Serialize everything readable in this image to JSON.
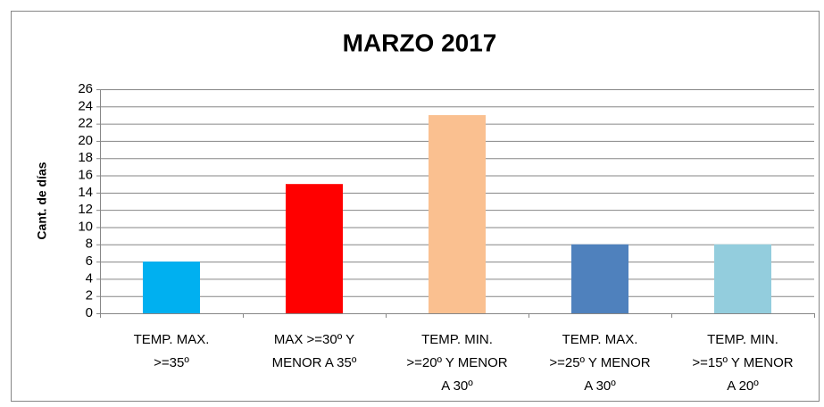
{
  "chart_data": {
    "type": "bar",
    "title": "MARZO 2017",
    "y_label": "Cant. de días",
    "categories": [
      [
        "TEMP. MAX.",
        ">=35º"
      ],
      [
        "MAX >=30º Y",
        "MENOR A 35º"
      ],
      [
        "TEMP. MIN.",
        ">=20º Y MENOR",
        "A 30º"
      ],
      [
        "TEMP. MAX.",
        ">=25º Y MENOR",
        "A 30º"
      ],
      [
        "TEMP. MIN.",
        ">=15º Y MENOR",
        "A 20º"
      ]
    ],
    "values": [
      6,
      15,
      23,
      8,
      8
    ],
    "colors": [
      "#00b0f0",
      "#ff0000",
      "#fac090",
      "#4f81bd",
      "#93cddd"
    ],
    "ylim": [
      0,
      26
    ],
    "yticks": [
      0,
      2,
      4,
      6,
      8,
      10,
      12,
      14,
      16,
      18,
      20,
      22,
      24,
      26
    ],
    "grid": true
  }
}
